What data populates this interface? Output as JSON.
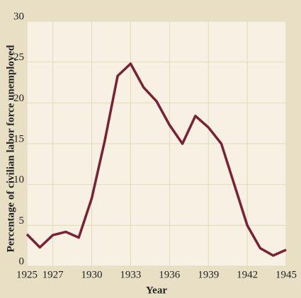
{
  "chart_data": {
    "type": "line",
    "x_label": "Year",
    "y_label": "Percentage of civilian labor force unemployed",
    "x": [
      1925,
      1926,
      1927,
      1928,
      1929,
      1930,
      1931,
      1932,
      1933,
      1934,
      1935,
      1936,
      1937,
      1938,
      1939,
      1940,
      1941,
      1942,
      1943,
      1944,
      1945
    ],
    "series": [
      {
        "color": "#7b2136",
        "values": [
          3.9,
          2.3,
          3.8,
          4.2,
          3.5,
          8.3,
          15.3,
          23.3,
          24.8,
          21.9,
          20.2,
          17.3,
          15.0,
          18.4,
          17.0,
          15.0,
          10.0,
          5.0,
          2.2,
          1.3,
          2.0
        ]
      }
    ],
    "xlim": [
      1925,
      1945
    ],
    "xticks": [
      1925,
      1927,
      1930,
      1933,
      1936,
      1939,
      1942,
      1945
    ],
    "ylim": [
      0,
      30
    ],
    "yticks": [
      0,
      5,
      10,
      15,
      20,
      25,
      30
    ],
    "grid": true
  }
}
